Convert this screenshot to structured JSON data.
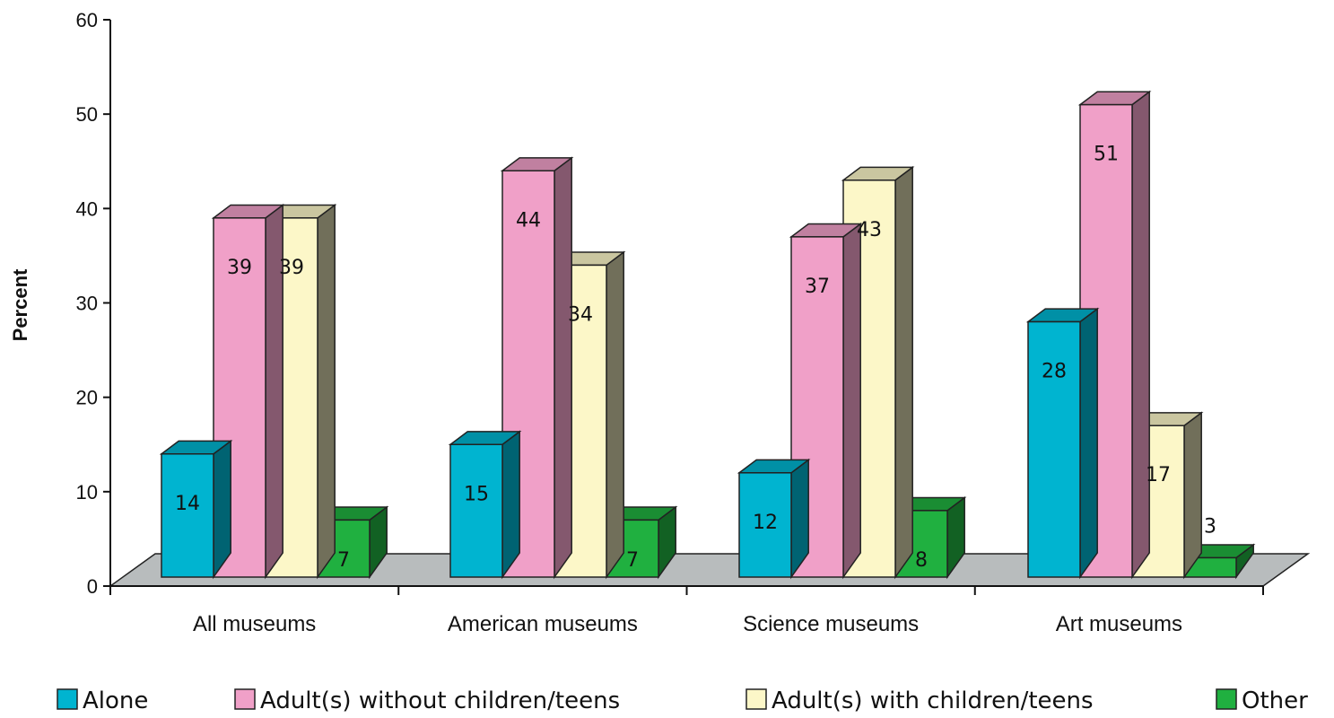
{
  "chart_data": {
    "type": "bar",
    "title": "",
    "xlabel": "",
    "ylabel": "Percent",
    "ylim": [
      0,
      60
    ],
    "yticks": [
      0,
      10,
      20,
      30,
      40,
      50,
      60
    ],
    "categories": [
      "All museums",
      "American museums",
      "Science museums",
      "Art museums"
    ],
    "series": [
      {
        "name": "Alone",
        "values": [
          14,
          15,
          12,
          28
        ],
        "color": "#00b4d0"
      },
      {
        "name": "Adult(s) without children/teens",
        "values": [
          39,
          44,
          37,
          51
        ],
        "color": "#f0a0c8"
      },
      {
        "name": "Adult(s) with children/teens",
        "values": [
          39,
          34,
          43,
          17
        ],
        "color": "#fcf7c8"
      },
      {
        "name": "Other",
        "values": [
          7,
          7,
          8,
          3
        ],
        "color": "#20b040"
      }
    ],
    "data_labels": true,
    "legend": "bottom",
    "style": "3d-bar",
    "floor_color": "#b8bcbd"
  }
}
